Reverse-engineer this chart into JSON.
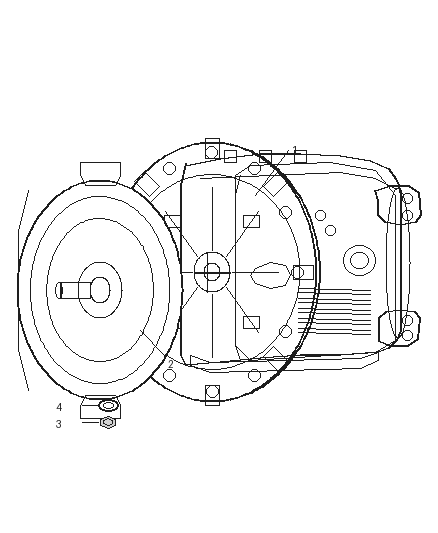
{
  "background_color": "#ffffff",
  "line_color": "#1a1a1a",
  "fig_width": 4.38,
  "fig_height": 5.33,
  "dpi": 100,
  "label_fontsize": 8.5
}
